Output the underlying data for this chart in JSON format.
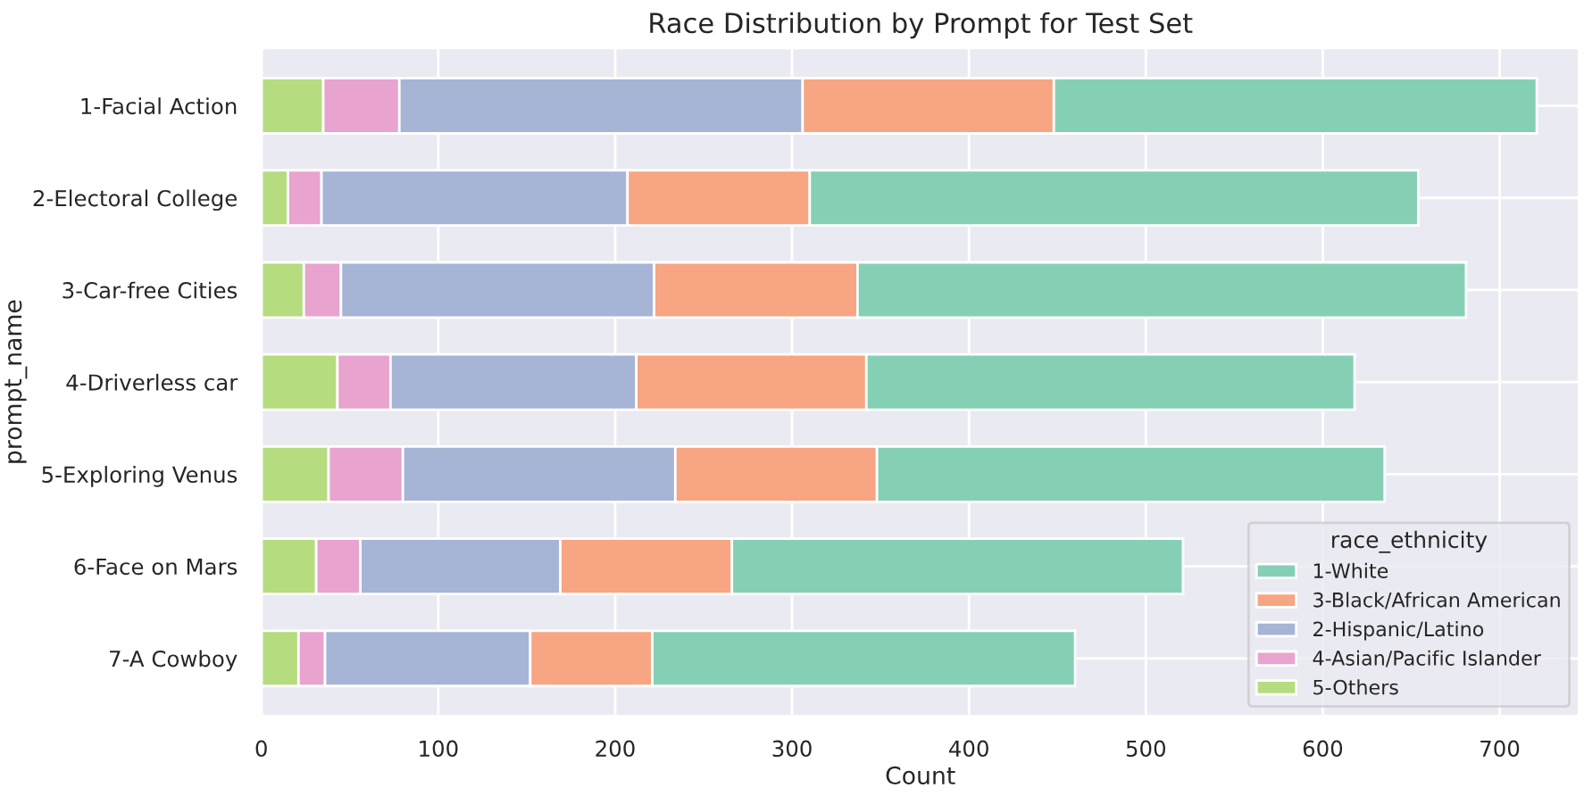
{
  "chart_data": {
    "type": "bar",
    "orientation": "horizontal",
    "stacked": true,
    "title": "Race Distribution by Prompt for Test Set",
    "xlabel": "Count",
    "ylabel": "prompt_name",
    "legend_title": "race_ethnicity",
    "legend": "bottom right",
    "grid": true,
    "categories": [
      "1-Facial Action",
      "2-Electoral College",
      "3-Car-free Cities",
      "4-Driverless car",
      "5-Exploring Venus",
      "6-Face on Mars",
      "7-A Cowboy"
    ],
    "xlim": [
      0,
      745
    ],
    "xticks": [
      0,
      100,
      200,
      300,
      400,
      500,
      600,
      700
    ],
    "series": [
      {
        "name": "5-Others",
        "color": "#b5dc7f",
        "values": [
          35,
          15,
          24,
          43,
          38,
          31,
          21
        ]
      },
      {
        "name": "4-Asian/Pacific Islander",
        "color": "#e8a3cf",
        "values": [
          43,
          19,
          21,
          30,
          42,
          25,
          15
        ]
      },
      {
        "name": "2-Hispanic/Latino",
        "color": "#a6b4d6",
        "values": [
          228,
          173,
          177,
          139,
          154,
          113,
          116
        ]
      },
      {
        "name": "3-Black/African American",
        "color": "#f7a582",
        "values": [
          142,
          103,
          115,
          130,
          114,
          97,
          69
        ]
      },
      {
        "name": "1-White",
        "color": "#85d0b5",
        "values": [
          273,
          344,
          344,
          276,
          287,
          255,
          239
        ]
      }
    ]
  }
}
